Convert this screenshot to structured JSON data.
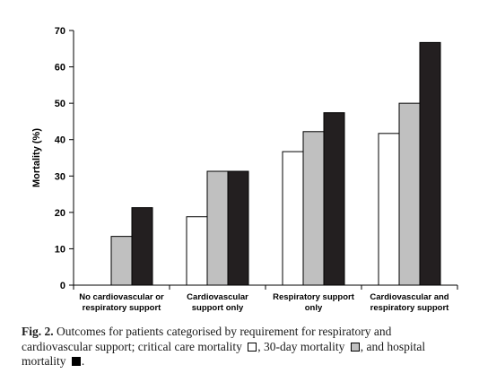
{
  "chart_data": {
    "type": "bar",
    "title": "",
    "xlabel": "",
    "ylabel": "Mortality (%)",
    "ylim": [
      0,
      70
    ],
    "yticks": [
      0,
      10,
      20,
      30,
      40,
      50,
      60,
      70
    ],
    "grid": false,
    "categories": [
      [
        "No cardiovascular or",
        "respiratory support"
      ],
      [
        "Cardiovascular",
        "support only"
      ],
      [
        "Respiratory support",
        "only"
      ],
      [
        "Cardiovascular and",
        "respiratory support"
      ]
    ],
    "series": [
      {
        "key": "critical",
        "color": "#ffffff",
        "values": [
          0,
          18.8,
          36.7,
          41.7
        ]
      },
      {
        "key": "thirty",
        "color": "#c0c0c0",
        "values": [
          13.4,
          31.3,
          42.2,
          50.0
        ]
      },
      {
        "key": "hospital",
        "color": "#231f20",
        "values": [
          21.3,
          31.3,
          47.4,
          66.7
        ]
      }
    ]
  },
  "caption": {
    "fig_label": "Fig. 2.",
    "text1": " Outcomes for patients categorised by requirement for respiratory and cardiovascular support; critical care mortality ",
    "text2": ", 30-day mortality ",
    "text3": ", and hospital mortality ",
    "text4": "."
  }
}
